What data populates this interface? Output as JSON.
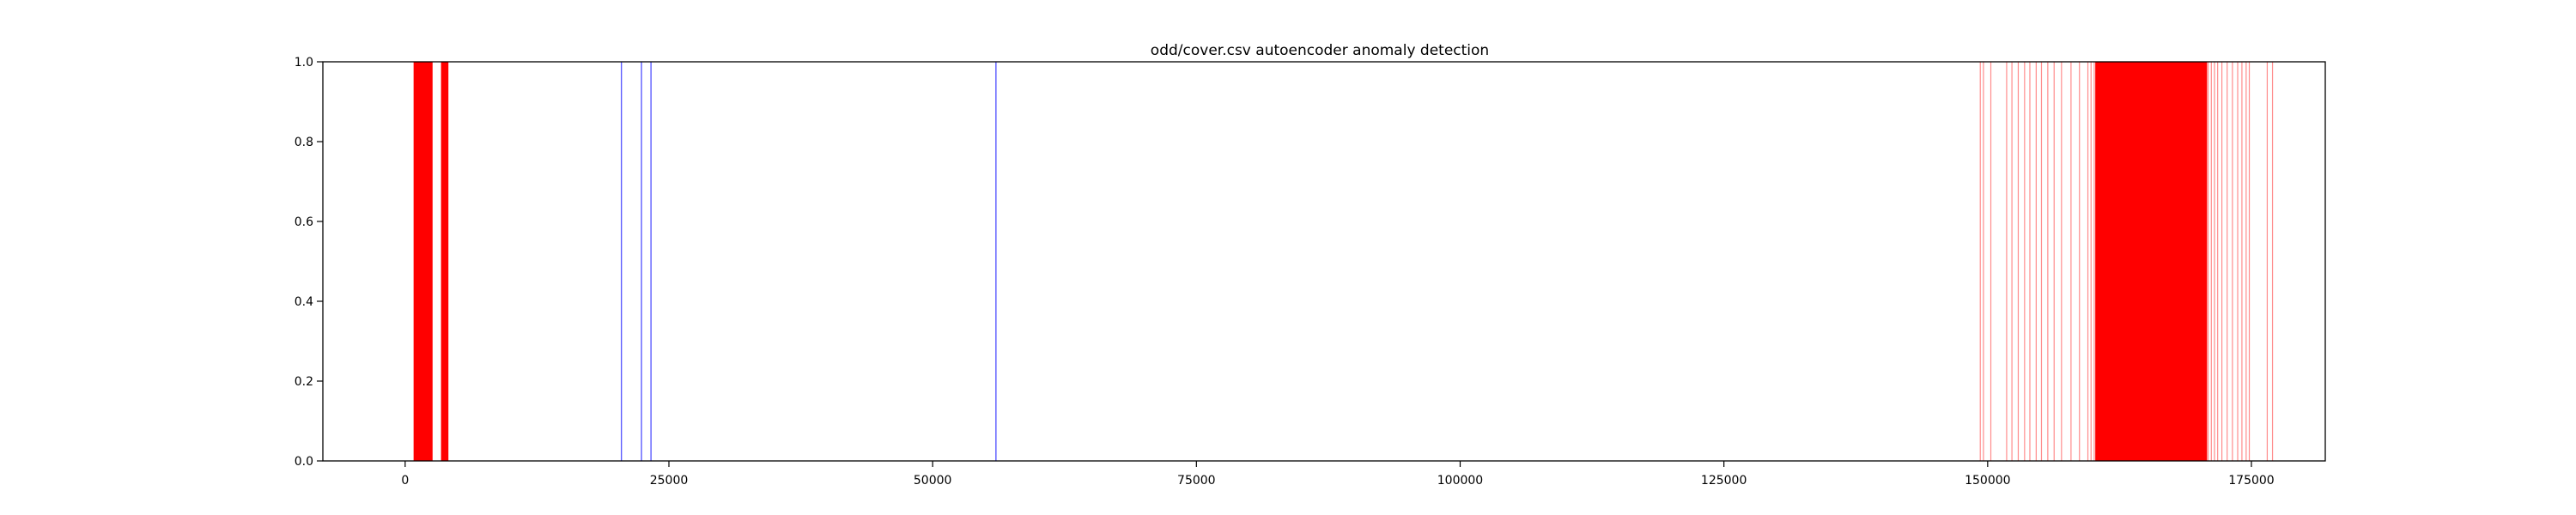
{
  "chart_data": {
    "type": "bar",
    "title": "odd/cover.csv autoencoder anomaly detection",
    "xlabel": "",
    "ylabel": "",
    "xlim": [
      -7800,
      182000
    ],
    "ylim": [
      0,
      1.0
    ],
    "x_ticks": [
      0,
      25000,
      50000,
      75000,
      100000,
      125000,
      150000,
      175000
    ],
    "y_ticks": [
      0.0,
      0.2,
      0.4,
      0.6,
      0.8,
      1.0
    ],
    "y_tick_labels": [
      "0.0",
      "0.2",
      "0.4",
      "0.6",
      "0.8",
      "1.0"
    ],
    "grid": false,
    "series": [
      {
        "color": "#ff0000",
        "opacity": 0.45,
        "bands": [
          [
            800,
            2600
          ],
          [
            3400,
            4100
          ],
          [
            160200,
            170800
          ]
        ],
        "x": [
          149300,
          149600,
          150300,
          151800,
          152300,
          152900,
          153500,
          154000,
          154600,
          155100,
          155700,
          156300,
          157000,
          157900,
          158700,
          159500,
          159800,
          160100,
          160400,
          160700,
          161000,
          161300,
          161600,
          161900,
          162200,
          162500,
          162800,
          163100,
          163400,
          163700,
          164000,
          164300,
          164600,
          164900,
          165200,
          165500,
          165800,
          166100,
          166400,
          166700,
          167000,
          167300,
          167600,
          167900,
          168200,
          168500,
          168800,
          169100,
          169400,
          169700,
          170000,
          170300,
          170600,
          170900,
          171200,
          171500,
          171800,
          172200,
          172700,
          173200,
          173700,
          174100,
          174500,
          174800,
          176500,
          177000
        ],
        "y": 1.0
      },
      {
        "color": "#0000ff",
        "opacity": 0.75,
        "x": [
          20500,
          22400,
          23300,
          56000
        ],
        "y": 1.0
      }
    ]
  }
}
